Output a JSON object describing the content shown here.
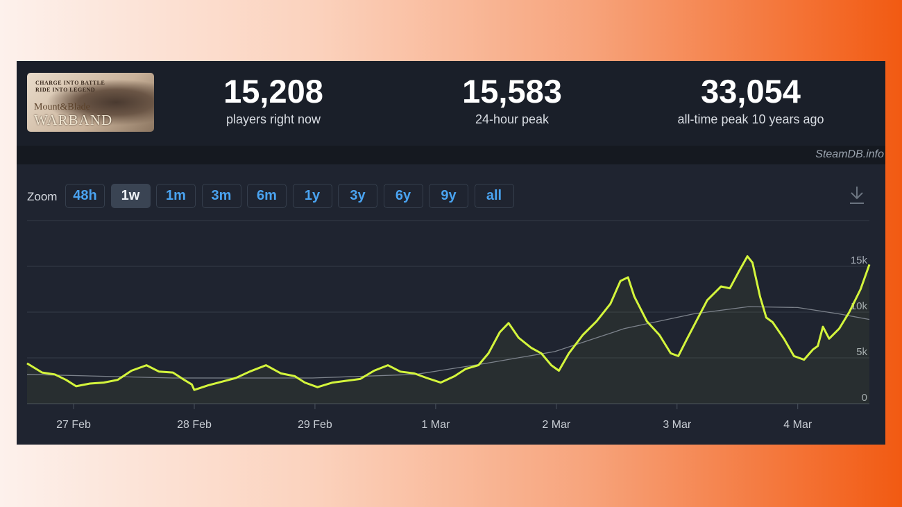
{
  "game": {
    "logo_text": [
      "CHARGE INTO BATTLE",
      "RIDE INTO LEGEND",
      "Mount&Blade",
      "WARBAND"
    ]
  },
  "stats": [
    {
      "value": "15,208",
      "label": "players right now"
    },
    {
      "value": "15,583",
      "label": "24-hour peak"
    },
    {
      "value": "33,054",
      "label": "all-time peak 10 years ago"
    }
  ],
  "brand": "SteamDB.info",
  "zoom": {
    "label": "Zoom",
    "options": [
      "48h",
      "1w",
      "1m",
      "3m",
      "6m",
      "1y",
      "3y",
      "6y",
      "9y",
      "all"
    ],
    "selected": "1w"
  },
  "download_icon": "download-icon",
  "colors": {
    "players_line": "#d4f53c",
    "average_line": "#7d838c",
    "active_zoom_bg": "#3a4453",
    "zoom_text": "#4aa3f0"
  },
  "chart_data": {
    "type": "line",
    "x_range": [
      "26 Feb 14:45",
      "4 Mar 14:15"
    ],
    "ylim": [
      0,
      20000
    ],
    "y_ticks": [
      {
        "value": 0,
        "label": "0"
      },
      {
        "value": 5000,
        "label": "5k"
      },
      {
        "value": 10000,
        "label": "10k"
      },
      {
        "value": 15000,
        "label": "15k"
      }
    ],
    "x_ticks": [
      "27 Feb",
      "28 Feb",
      "29 Feb",
      "1 Mar",
      "2 Mar",
      "3 Mar",
      "4 Mar"
    ],
    "grid": true,
    "series": [
      {
        "role": "players",
        "points": [
          [
            "26 Feb 14:45",
            4400
          ],
          [
            "26 Feb 17:45",
            3400
          ],
          [
            "26 Feb 20:15",
            3200
          ],
          [
            "26 Feb 22:30",
            2600
          ],
          [
            "27 Feb 00:30",
            1900
          ],
          [
            "27 Feb 03:15",
            2200
          ],
          [
            "27 Feb 06:00",
            2300
          ],
          [
            "27 Feb 08:45",
            2600
          ],
          [
            "27 Feb 11:30",
            3600
          ],
          [
            "27 Feb 14:30",
            4200
          ],
          [
            "27 Feb 17:00",
            3500
          ],
          [
            "27 Feb 19:45",
            3400
          ],
          [
            "27 Feb 22:00",
            2600
          ],
          [
            "27 Feb 23:30",
            2100
          ],
          [
            "28 Feb 00:00",
            1500
          ],
          [
            "28 Feb 02:45",
            2000
          ],
          [
            "28 Feb 05:30",
            2400
          ],
          [
            "28 Feb 08:15",
            2800
          ],
          [
            "28 Feb 11:00",
            3500
          ],
          [
            "28 Feb 14:15",
            4200
          ],
          [
            "28 Feb 17:15",
            3300
          ],
          [
            "28 Feb 20:00",
            3000
          ],
          [
            "28 Feb 22:00",
            2300
          ],
          [
            "29 Feb 00:30",
            1800
          ],
          [
            "29 Feb 03:30",
            2300
          ],
          [
            "29 Feb 06:15",
            2500
          ],
          [
            "29 Feb 09:00",
            2700
          ],
          [
            "29 Feb 11:45",
            3600
          ],
          [
            "29 Feb 14:30",
            4200
          ],
          [
            "29 Feb 17:00",
            3500
          ],
          [
            "29 Feb 19:45",
            3300
          ],
          [
            "29 Feb 22:15",
            2800
          ],
          [
            "1 Mar 01:00",
            2300
          ],
          [
            "1 Mar 03:45",
            3000
          ],
          [
            "1 Mar 06:00",
            3800
          ],
          [
            "1 Mar 08:30",
            4200
          ],
          [
            "1 Mar 10:30",
            5500
          ],
          [
            "1 Mar 12:45",
            7800
          ],
          [
            "1 Mar 14:30",
            8800
          ],
          [
            "1 Mar 16:30",
            7200
          ],
          [
            "1 Mar 19:00",
            6100
          ],
          [
            "1 Mar 21:00",
            5500
          ],
          [
            "1 Mar 23:00",
            4200
          ],
          [
            "2 Mar 00:30",
            3600
          ],
          [
            "2 Mar 02:30",
            5500
          ],
          [
            "2 Mar 05:15",
            7500
          ],
          [
            "2 Mar 08:00",
            9000
          ],
          [
            "2 Mar 10:45",
            10900
          ],
          [
            "2 Mar 12:45",
            13400
          ],
          [
            "2 Mar 14:15",
            13800
          ],
          [
            "2 Mar 15:30",
            11700
          ],
          [
            "2 Mar 18:00",
            9000
          ],
          [
            "2 Mar 20:30",
            7500
          ],
          [
            "2 Mar 22:45",
            5500
          ],
          [
            "3 Mar 00:15",
            5200
          ],
          [
            "3 Mar 02:00",
            7100
          ],
          [
            "3 Mar 04:00",
            9200
          ],
          [
            "3 Mar 06:00",
            11300
          ],
          [
            "3 Mar 08:45",
            12800
          ],
          [
            "3 Mar 10:30",
            12600
          ],
          [
            "3 Mar 12:15",
            14400
          ],
          [
            "3 Mar 14:00",
            16100
          ],
          [
            "3 Mar 15:00",
            15400
          ],
          [
            "3 Mar 16:30",
            11700
          ],
          [
            "3 Mar 17:45",
            9400
          ],
          [
            "3 Mar 19:00",
            8900
          ],
          [
            "3 Mar 21:15",
            7100
          ],
          [
            "3 Mar 23:15",
            5200
          ],
          [
            "4 Mar 01:15",
            4800
          ],
          [
            "4 Mar 03:00",
            5900
          ],
          [
            "4 Mar 04:00",
            6300
          ],
          [
            "4 Mar 05:00",
            8400
          ],
          [
            "4 Mar 06:15",
            7100
          ],
          [
            "4 Mar 08:15",
            8200
          ],
          [
            "4 Mar 10:15",
            10000
          ],
          [
            "4 Mar 12:30",
            12500
          ],
          [
            "4 Mar 14:15",
            15200
          ]
        ]
      },
      {
        "role": "average",
        "points": [
          [
            "26 Feb 14:45",
            3200
          ],
          [
            "27 Feb 19:45",
            2800
          ],
          [
            "28 Feb 23:30",
            2800
          ],
          [
            "29 Feb 20:00",
            3200
          ],
          [
            "1 Mar 10:00",
            4400
          ],
          [
            "1 Mar 23:45",
            5700
          ],
          [
            "2 Mar 13:30",
            8200
          ],
          [
            "3 Mar 03:15",
            9800
          ],
          [
            "3 Mar 14:15",
            10600
          ],
          [
            "4 Mar 00:00",
            10500
          ],
          [
            "4 Mar 08:15",
            9800
          ],
          [
            "4 Mar 14:15",
            9200
          ]
        ]
      }
    ]
  }
}
